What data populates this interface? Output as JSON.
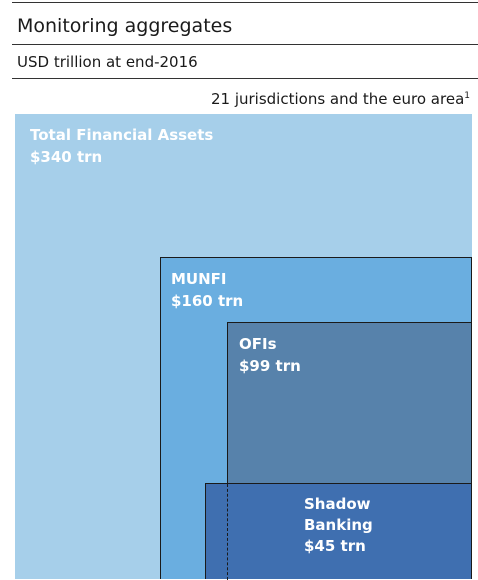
{
  "header": {
    "title": "Monitoring aggregates",
    "subtitle": "USD trillion at end-2016",
    "scope": "21 jurisdictions and the euro area",
    "scope_note": "1"
  },
  "boxes": [
    {
      "name": "Total Financial Assets",
      "value": "$340 trn",
      "color": "#a6cfea"
    },
    {
      "name": "MUNFI",
      "value": "$160 trn",
      "color": "#6aaee0"
    },
    {
      "name": "OFIs",
      "value": "$99 trn",
      "color": "#5782ab"
    },
    {
      "name": "Shadow Banking",
      "value": "$45 trn",
      "color": "#3f6fb0"
    }
  ]
}
